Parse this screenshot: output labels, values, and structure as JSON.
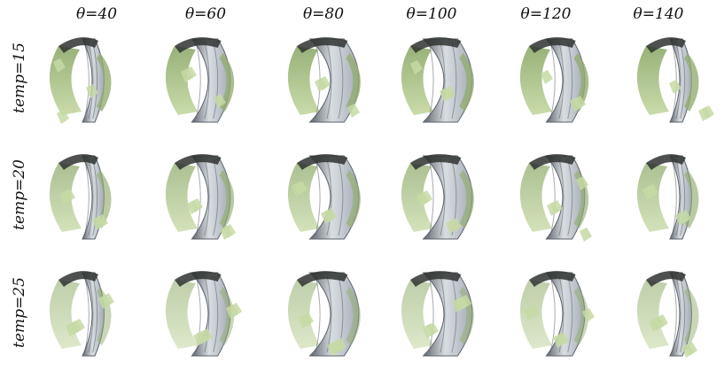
{
  "columns": [
    {
      "label": "θ=40",
      "value": 40
    },
    {
      "label": "θ=60",
      "value": 60
    },
    {
      "label": "θ=80",
      "value": 80
    },
    {
      "label": "θ=100",
      "value": 100
    },
    {
      "label": "θ=120",
      "value": 120
    },
    {
      "label": "θ=140",
      "value": 140
    }
  ],
  "rows": [
    {
      "label": "temp=15",
      "value": 15
    },
    {
      "label": "temp=20",
      "value": 20
    },
    {
      "label": "temp=25",
      "value": 25
    }
  ],
  "colors": {
    "background": "#ffffff",
    "tire_light": "#d8dde2",
    "tire_mid": "#a4abb4",
    "tire_dark": "#5e646c",
    "green_light": "#c6d9a5",
    "green_mid": "#93ad72",
    "green_dark": "#5e7443",
    "shadow": "#2f3230"
  }
}
